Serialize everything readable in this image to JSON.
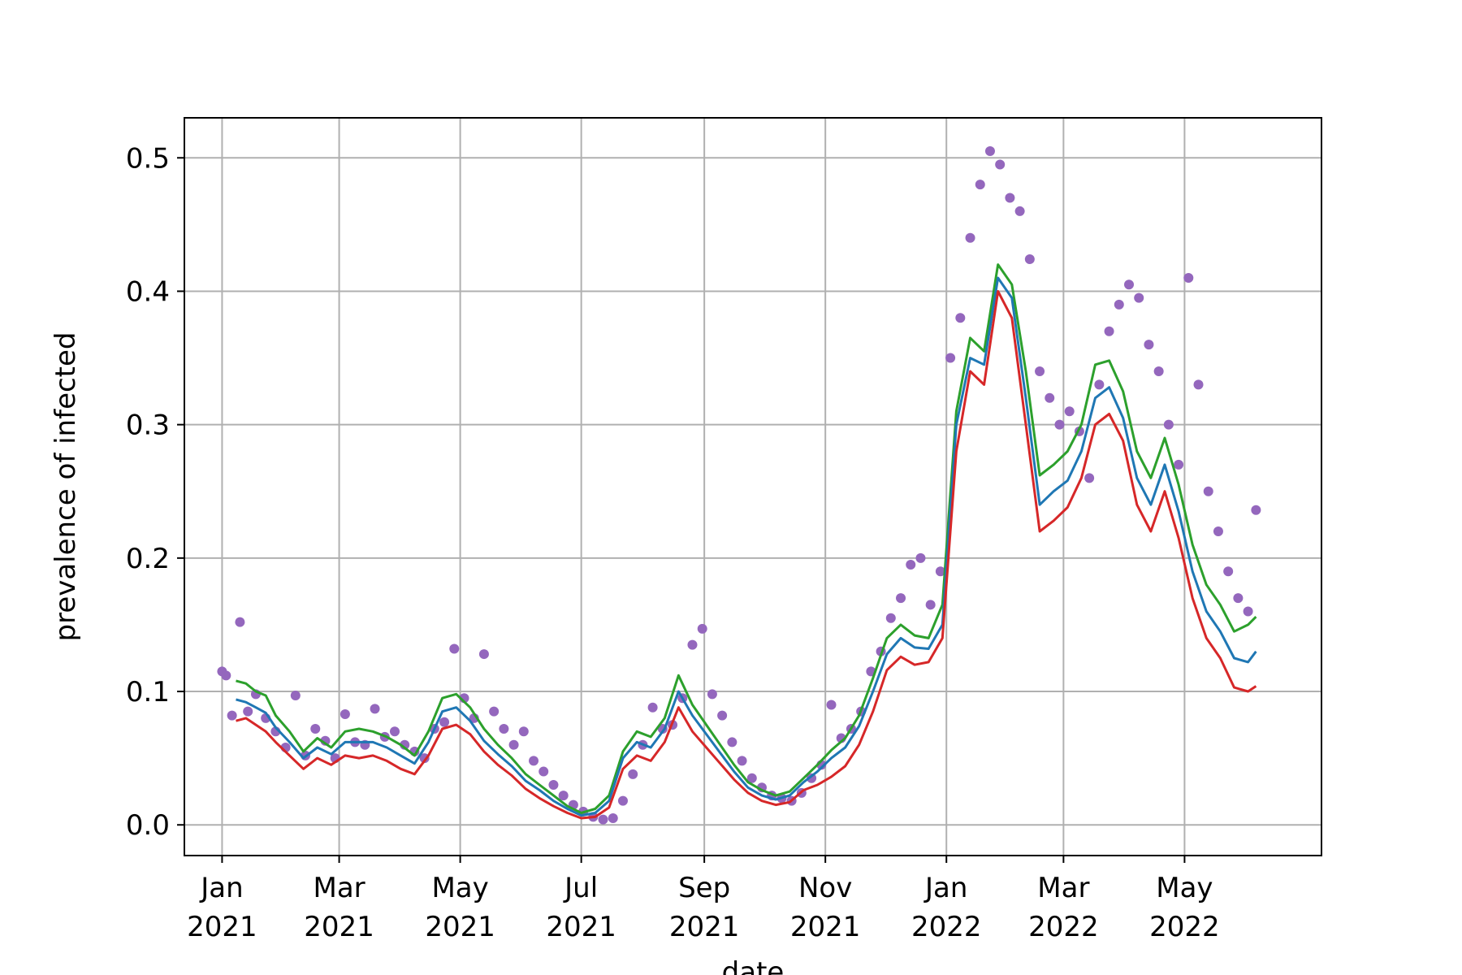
{
  "chart_data": {
    "type": "line",
    "xlabel": "date",
    "ylabel": "prevalence of infected",
    "x_range": [
      "2020-12-13",
      "2022-07-09"
    ],
    "ylim": [
      -0.023,
      0.53
    ],
    "y_ticks": [
      0.0,
      0.1,
      0.2,
      0.3,
      0.4,
      0.5
    ],
    "y_tick_labels": [
      "0.0",
      "0.1",
      "0.2",
      "0.3",
      "0.4",
      "0.5"
    ],
    "x_ticks": [
      {
        "date": "2021-01-01",
        "label1": "Jan",
        "label2": "2021"
      },
      {
        "date": "2021-03-01",
        "label1": "Mar",
        "label2": "2021"
      },
      {
        "date": "2021-05-01",
        "label1": "May",
        "label2": "2021"
      },
      {
        "date": "2021-07-01",
        "label1": "Jul",
        "label2": "2021"
      },
      {
        "date": "2021-09-01",
        "label1": "Sep",
        "label2": "2021"
      },
      {
        "date": "2021-11-01",
        "label1": "Nov",
        "label2": "2021"
      },
      {
        "date": "2022-01-01",
        "label1": "Jan",
        "label2": "2022"
      },
      {
        "date": "2022-03-01",
        "label1": "Mar",
        "label2": "2022"
      },
      {
        "date": "2022-05-01",
        "label1": "May",
        "label2": "2022"
      }
    ],
    "grid": true,
    "legend": "none",
    "colors": {
      "scatter": "#9467bd",
      "line_green": "#2ca02c",
      "line_blue": "#1f77b4",
      "line_red": "#d62728"
    },
    "scatter": {
      "dates": [
        "2021-01-01",
        "2021-01-03",
        "2021-01-06",
        "2021-01-10",
        "2021-01-14",
        "2021-01-18",
        "2021-01-23",
        "2021-01-28",
        "2021-02-02",
        "2021-02-07",
        "2021-02-12",
        "2021-02-17",
        "2021-02-22",
        "2021-02-27",
        "2021-03-04",
        "2021-03-09",
        "2021-03-14",
        "2021-03-19",
        "2021-03-24",
        "2021-03-29",
        "2021-04-03",
        "2021-04-08",
        "2021-04-13",
        "2021-04-18",
        "2021-04-23",
        "2021-04-28",
        "2021-05-03",
        "2021-05-08",
        "2021-05-13",
        "2021-05-18",
        "2021-05-23",
        "2021-05-28",
        "2021-06-02",
        "2021-06-07",
        "2021-06-12",
        "2021-06-17",
        "2021-06-22",
        "2021-06-27",
        "2021-07-02",
        "2021-07-07",
        "2021-07-12",
        "2021-07-17",
        "2021-07-22",
        "2021-07-27",
        "2021-08-01",
        "2021-08-06",
        "2021-08-11",
        "2021-08-16",
        "2021-08-21",
        "2021-08-26",
        "2021-08-31",
        "2021-09-05",
        "2021-09-10",
        "2021-09-15",
        "2021-09-20",
        "2021-09-25",
        "2021-09-30",
        "2021-10-05",
        "2021-10-10",
        "2021-10-15",
        "2021-10-20",
        "2021-10-25",
        "2021-10-30",
        "2021-11-04",
        "2021-11-09",
        "2021-11-14",
        "2021-11-19",
        "2021-11-24",
        "2021-11-29",
        "2021-12-04",
        "2021-12-09",
        "2021-12-14",
        "2021-12-19",
        "2021-12-24",
        "2021-12-29",
        "2022-01-03",
        "2022-01-08",
        "2022-01-13",
        "2022-01-18",
        "2022-01-23",
        "2022-01-28",
        "2022-02-02",
        "2022-02-07",
        "2022-02-12",
        "2022-02-17",
        "2022-02-22",
        "2022-02-27",
        "2022-03-04",
        "2022-03-09",
        "2022-03-14",
        "2022-03-19",
        "2022-03-24",
        "2022-03-29",
        "2022-04-03",
        "2022-04-08",
        "2022-04-13",
        "2022-04-18",
        "2022-04-23",
        "2022-04-28",
        "2022-05-03",
        "2022-05-08",
        "2022-05-13",
        "2022-05-18",
        "2022-05-23",
        "2022-05-28",
        "2022-06-02",
        "2022-06-06"
      ],
      "values": [
        0.115,
        0.112,
        0.082,
        0.152,
        0.085,
        0.098,
        0.08,
        0.07,
        0.058,
        0.097,
        0.052,
        0.072,
        0.063,
        0.05,
        0.083,
        0.062,
        0.06,
        0.087,
        0.066,
        0.07,
        0.06,
        0.055,
        0.05,
        0.072,
        0.077,
        0.132,
        0.095,
        0.08,
        0.128,
        0.085,
        0.072,
        0.06,
        0.07,
        0.048,
        0.04,
        0.03,
        0.022,
        0.015,
        0.01,
        0.006,
        0.004,
        0.005,
        0.018,
        0.038,
        0.06,
        0.088,
        0.072,
        0.075,
        0.095,
        0.135,
        0.147,
        0.098,
        0.082,
        0.062,
        0.048,
        0.035,
        0.028,
        0.022,
        0.02,
        0.018,
        0.024,
        0.035,
        0.045,
        0.09,
        0.065,
        0.072,
        0.085,
        0.115,
        0.13,
        0.155,
        0.17,
        0.195,
        0.2,
        0.165,
        0.19,
        0.35,
        0.38,
        0.44,
        0.48,
        0.505,
        0.495,
        0.47,
        0.46,
        0.424,
        0.34,
        0.32,
        0.3,
        0.31,
        0.295,
        0.26,
        0.33,
        0.37,
        0.39,
        0.405,
        0.395,
        0.36,
        0.34,
        0.3,
        0.27,
        0.41,
        0.33,
        0.25,
        0.22,
        0.19,
        0.17,
        0.16,
        0.236
      ]
    },
    "series": [
      {
        "color_key": "line_green",
        "dates": [
          "2021-01-08",
          "2021-01-13",
          "2021-01-18",
          "2021-01-23",
          "2021-01-28",
          "2021-02-04",
          "2021-02-11",
          "2021-02-18",
          "2021-02-25",
          "2021-03-04",
          "2021-03-11",
          "2021-03-18",
          "2021-03-25",
          "2021-04-01",
          "2021-04-08",
          "2021-04-15",
          "2021-04-22",
          "2021-04-29",
          "2021-05-06",
          "2021-05-13",
          "2021-05-20",
          "2021-05-27",
          "2021-06-03",
          "2021-06-10",
          "2021-06-17",
          "2021-06-24",
          "2021-07-01",
          "2021-07-08",
          "2021-07-15",
          "2021-07-22",
          "2021-07-29",
          "2021-08-05",
          "2021-08-12",
          "2021-08-19",
          "2021-08-26",
          "2021-09-02",
          "2021-09-09",
          "2021-09-16",
          "2021-09-23",
          "2021-09-30",
          "2021-10-07",
          "2021-10-14",
          "2021-10-21",
          "2021-10-28",
          "2021-11-04",
          "2021-11-11",
          "2021-11-18",
          "2021-11-25",
          "2021-12-02",
          "2021-12-09",
          "2021-12-16",
          "2021-12-23",
          "2021-12-30",
          "2022-01-06",
          "2022-01-13",
          "2022-01-20",
          "2022-01-27",
          "2022-02-03",
          "2022-02-10",
          "2022-02-17",
          "2022-02-24",
          "2022-03-03",
          "2022-03-10",
          "2022-03-17",
          "2022-03-24",
          "2022-03-31",
          "2022-04-07",
          "2022-04-14",
          "2022-04-21",
          "2022-04-28",
          "2022-05-05",
          "2022-05-12",
          "2022-05-19",
          "2022-05-26",
          "2022-06-02",
          "2022-06-06"
        ],
        "values": [
          0.108,
          0.106,
          0.1,
          0.097,
          0.082,
          0.07,
          0.055,
          0.065,
          0.058,
          0.07,
          0.072,
          0.07,
          0.066,
          0.06,
          0.052,
          0.07,
          0.095,
          0.098,
          0.088,
          0.072,
          0.06,
          0.05,
          0.038,
          0.03,
          0.022,
          0.014,
          0.009,
          0.012,
          0.022,
          0.055,
          0.07,
          0.066,
          0.08,
          0.112,
          0.09,
          0.075,
          0.06,
          0.045,
          0.032,
          0.026,
          0.022,
          0.025,
          0.035,
          0.045,
          0.056,
          0.065,
          0.082,
          0.11,
          0.14,
          0.15,
          0.142,
          0.14,
          0.165,
          0.31,
          0.365,
          0.355,
          0.42,
          0.405,
          0.34,
          0.262,
          0.27,
          0.28,
          0.3,
          0.345,
          0.348,
          0.325,
          0.28,
          0.26,
          0.29,
          0.255,
          0.21,
          0.18,
          0.165,
          0.145,
          0.15,
          0.156
        ]
      },
      {
        "color_key": "line_blue",
        "dates": [
          "2021-01-08",
          "2021-01-13",
          "2021-01-18",
          "2021-01-23",
          "2021-01-28",
          "2021-02-04",
          "2021-02-11",
          "2021-02-18",
          "2021-02-25",
          "2021-03-04",
          "2021-03-11",
          "2021-03-18",
          "2021-03-25",
          "2021-04-01",
          "2021-04-08",
          "2021-04-15",
          "2021-04-22",
          "2021-04-29",
          "2021-05-06",
          "2021-05-13",
          "2021-05-20",
          "2021-05-27",
          "2021-06-03",
          "2021-06-10",
          "2021-06-17",
          "2021-06-24",
          "2021-07-01",
          "2021-07-08",
          "2021-07-15",
          "2021-07-22",
          "2021-07-29",
          "2021-08-05",
          "2021-08-12",
          "2021-08-19",
          "2021-08-26",
          "2021-09-02",
          "2021-09-09",
          "2021-09-16",
          "2021-09-23",
          "2021-09-30",
          "2021-10-07",
          "2021-10-14",
          "2021-10-21",
          "2021-10-28",
          "2021-11-04",
          "2021-11-11",
          "2021-11-18",
          "2021-11-25",
          "2021-12-02",
          "2021-12-09",
          "2021-12-16",
          "2021-12-23",
          "2021-12-30",
          "2022-01-06",
          "2022-01-13",
          "2022-01-20",
          "2022-01-27",
          "2022-02-03",
          "2022-02-10",
          "2022-02-17",
          "2022-02-24",
          "2022-03-03",
          "2022-03-10",
          "2022-03-17",
          "2022-03-24",
          "2022-03-31",
          "2022-04-07",
          "2022-04-14",
          "2022-04-21",
          "2022-04-28",
          "2022-05-05",
          "2022-05-12",
          "2022-05-19",
          "2022-05-26",
          "2022-06-02",
          "2022-06-06"
        ],
        "values": [
          0.094,
          0.092,
          0.088,
          0.084,
          0.073,
          0.062,
          0.05,
          0.058,
          0.053,
          0.062,
          0.062,
          0.062,
          0.058,
          0.052,
          0.046,
          0.062,
          0.085,
          0.088,
          0.078,
          0.063,
          0.053,
          0.044,
          0.033,
          0.026,
          0.018,
          0.012,
          0.007,
          0.009,
          0.018,
          0.05,
          0.062,
          0.058,
          0.072,
          0.1,
          0.082,
          0.068,
          0.054,
          0.04,
          0.028,
          0.022,
          0.019,
          0.022,
          0.032,
          0.04,
          0.05,
          0.058,
          0.074,
          0.1,
          0.128,
          0.14,
          0.133,
          0.132,
          0.15,
          0.3,
          0.35,
          0.345,
          0.41,
          0.395,
          0.32,
          0.24,
          0.25,
          0.258,
          0.28,
          0.32,
          0.328,
          0.305,
          0.26,
          0.24,
          0.27,
          0.235,
          0.19,
          0.16,
          0.145,
          0.125,
          0.122,
          0.13
        ]
      },
      {
        "color_key": "line_red",
        "dates": [
          "2021-01-08",
          "2021-01-13",
          "2021-01-18",
          "2021-01-23",
          "2021-01-28",
          "2021-02-04",
          "2021-02-11",
          "2021-02-18",
          "2021-02-25",
          "2021-03-04",
          "2021-03-11",
          "2021-03-18",
          "2021-03-25",
          "2021-04-01",
          "2021-04-08",
          "2021-04-15",
          "2021-04-22",
          "2021-04-29",
          "2021-05-06",
          "2021-05-13",
          "2021-05-20",
          "2021-05-27",
          "2021-06-03",
          "2021-06-10",
          "2021-06-17",
          "2021-06-24",
          "2021-07-01",
          "2021-07-08",
          "2021-07-15",
          "2021-07-22",
          "2021-07-29",
          "2021-08-05",
          "2021-08-12",
          "2021-08-19",
          "2021-08-26",
          "2021-09-02",
          "2021-09-09",
          "2021-09-16",
          "2021-09-23",
          "2021-09-30",
          "2021-10-07",
          "2021-10-14",
          "2021-10-21",
          "2021-10-28",
          "2021-11-04",
          "2021-11-11",
          "2021-11-18",
          "2021-11-25",
          "2021-12-02",
          "2021-12-09",
          "2021-12-16",
          "2021-12-23",
          "2021-12-30",
          "2022-01-06",
          "2022-01-13",
          "2022-01-20",
          "2022-01-27",
          "2022-02-03",
          "2022-02-10",
          "2022-02-17",
          "2022-02-24",
          "2022-03-03",
          "2022-03-10",
          "2022-03-17",
          "2022-03-24",
          "2022-03-31",
          "2022-04-07",
          "2022-04-14",
          "2022-04-21",
          "2022-04-28",
          "2022-05-05",
          "2022-05-12",
          "2022-05-19",
          "2022-05-26",
          "2022-06-02",
          "2022-06-06"
        ],
        "values": [
          0.078,
          0.08,
          0.075,
          0.07,
          0.062,
          0.052,
          0.042,
          0.05,
          0.045,
          0.052,
          0.05,
          0.052,
          0.048,
          0.042,
          0.038,
          0.052,
          0.072,
          0.075,
          0.068,
          0.055,
          0.045,
          0.037,
          0.027,
          0.02,
          0.014,
          0.009,
          0.005,
          0.006,
          0.013,
          0.042,
          0.052,
          0.048,
          0.062,
          0.088,
          0.07,
          0.058,
          0.046,
          0.034,
          0.024,
          0.018,
          0.015,
          0.017,
          0.026,
          0.03,
          0.036,
          0.044,
          0.06,
          0.085,
          0.116,
          0.126,
          0.12,
          0.122,
          0.14,
          0.28,
          0.34,
          0.33,
          0.4,
          0.38,
          0.3,
          0.22,
          0.228,
          0.238,
          0.26,
          0.3,
          0.308,
          0.288,
          0.24,
          0.22,
          0.25,
          0.215,
          0.17,
          0.14,
          0.125,
          0.103,
          0.1,
          0.104
        ]
      }
    ]
  }
}
